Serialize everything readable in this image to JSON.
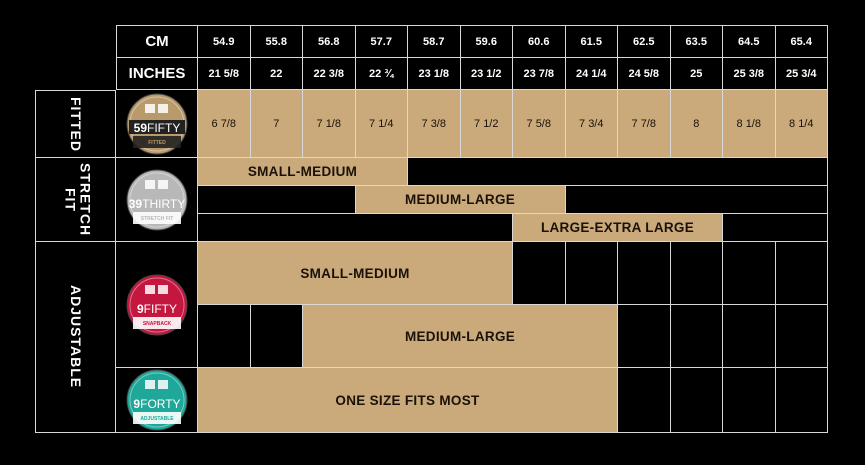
{
  "header": {
    "cm_label": "CM",
    "inches_label": "INCHES",
    "cm": [
      "54.9",
      "55.8",
      "56.8",
      "57.7",
      "58.7",
      "59.6",
      "60.6",
      "61.5",
      "62.5",
      "63.5",
      "64.5",
      "65.4"
    ],
    "inches": [
      "21 5/8",
      "22",
      "22 3/8",
      "22 ¾",
      "23 1/8",
      "23 1/2",
      "23 7/8",
      "24 1/4",
      "24 5/8",
      "25",
      "25 3/8",
      "25 3/4"
    ]
  },
  "fitted": {
    "label": "FITTED",
    "logo": {
      "number": "59",
      "word": "FIFTY",
      "sub": "FITTED"
    },
    "sizes": [
      "6 7/8",
      "7",
      "7 1/8",
      "7 1/4",
      "7 3/8",
      "7 1/2",
      "7 5/8",
      "7 3/4",
      "7 7/8",
      "8",
      "8 1/8",
      "8 1/4"
    ]
  },
  "stretch": {
    "label": "STRETCH FIT",
    "logo": {
      "number": "39",
      "word": "THIRTY",
      "sub": "STRETCH FIT"
    },
    "bands": [
      "SMALL-MEDIUM",
      "MEDIUM-LARGE",
      "LARGE-EXTRA LARGE"
    ]
  },
  "adjustable": {
    "label": "ADJUSTABLE",
    "logo1": {
      "number": "9",
      "word": "FIFTY",
      "sub": "SNAPBACK"
    },
    "logo2": {
      "number": "9",
      "word": "FORTY",
      "sub": "ADJUSTABLE"
    },
    "bands": [
      "SMALL-MEDIUM",
      "MEDIUM-LARGE",
      "ONE SIZE FITS MOST"
    ]
  },
  "colors": {
    "tan": "#caa97b",
    "fitted_logo": "#b99a6a",
    "stretch_logo": "#b8b8b8",
    "snapback_logo": "#c4173f",
    "adjustable_logo": "#1fa89a"
  }
}
